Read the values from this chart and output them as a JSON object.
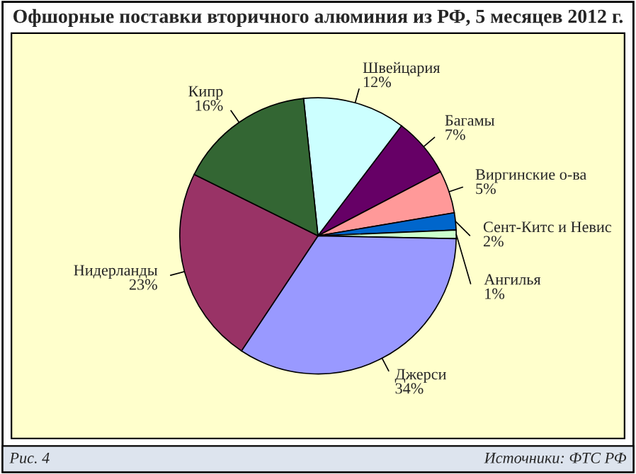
{
  "chart_data": {
    "type": "pie",
    "title": "Офшорные поставки вторичного алюминия из РФ, 5 месяцев 2012 г.",
    "categories": [
      "Швейцария",
      "Багамы",
      "Виргинские о-ва",
      "Сент-Китс и Невис",
      "Ангилья",
      "Джерси",
      "Нидерланды",
      "Кипр"
    ],
    "values": [
      12,
      7,
      5,
      2,
      1,
      34,
      23,
      16
    ],
    "colors": [
      "#ccffff",
      "#660066",
      "#ff9999",
      "#0066cc",
      "#ccffcc",
      "#9999ff",
      "#993366",
      "#336633"
    ],
    "value_labels": [
      "12%",
      "7%",
      "5%",
      "2%",
      "1%",
      "34%",
      "23%",
      "16%"
    ],
    "annotations": [
      "Рис. 4",
      "Источники: ФТС РФ"
    ]
  }
}
